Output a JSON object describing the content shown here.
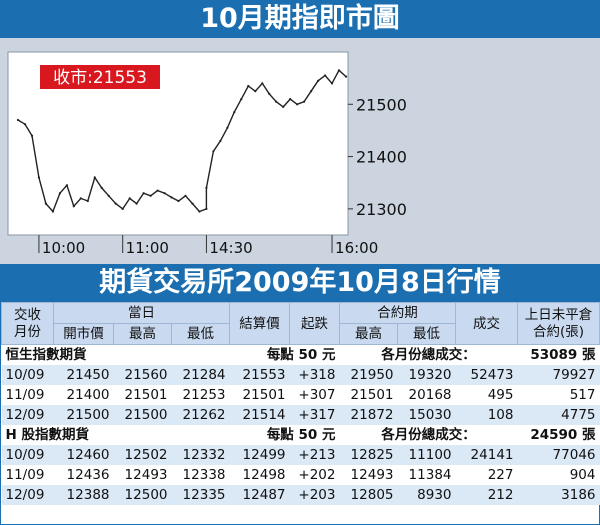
{
  "chart": {
    "title": "10月期指即市圖",
    "close_label": "收市:21553",
    "colors": {
      "background": "#ffffff",
      "price_line": "#222222",
      "badge_bg": "#d9171e",
      "banner": "#1b6fb0"
    }
  },
  "table_title": "期貨交易所2009年10月8日行情",
  "headers": {
    "contract_month_a": "交收",
    "contract_month_b": "月份",
    "today": "當日",
    "open": "開市價",
    "high": "最高",
    "low": "最低",
    "settle": "結算價",
    "change": "起跌",
    "life": "合約期",
    "life_high": "最高",
    "life_low": "最低",
    "volume": "成交",
    "oi_a": "上日未平倉",
    "oi_b": "合約(張)"
  },
  "groups": [
    {
      "name": "恒生指數期貨",
      "per_point": "每點 50 元",
      "total_label": "各月份總成交：",
      "total": "53089 張",
      "rows": [
        {
          "month": "10/09",
          "open": "21450",
          "high": "21560",
          "low": "21284",
          "settle": "21553",
          "change": "+318",
          "life_high": "21950",
          "life_low": "19320",
          "volume": "52473",
          "oi": "79927"
        },
        {
          "month": "11/09",
          "open": "21400",
          "high": "21501",
          "low": "21253",
          "settle": "21501",
          "change": "+307",
          "life_high": "21501",
          "life_low": "20168",
          "volume": "495",
          "oi": "517"
        },
        {
          "month": "12/09",
          "open": "21500",
          "high": "21500",
          "low": "21262",
          "settle": "21514",
          "change": "+317",
          "life_high": "21872",
          "life_low": "15030",
          "volume": "108",
          "oi": "4775"
        }
      ]
    },
    {
      "name": "H 股指數期貨",
      "per_point": "每點 50 元",
      "total_label": "各月份總成交：",
      "total": "24590 張",
      "rows": [
        {
          "month": "10/09",
          "open": "12460",
          "high": "12502",
          "low": "12332",
          "settle": "12499",
          "change": "+213",
          "life_high": "12825",
          "life_low": "11100",
          "volume": "24141",
          "oi": "77046"
        },
        {
          "month": "11/09",
          "open": "12436",
          "high": "12493",
          "low": "12338",
          "settle": "12498",
          "change": "+202",
          "life_high": "12493",
          "life_low": "11384",
          "volume": "227",
          "oi": "904"
        },
        {
          "month": "12/09",
          "open": "12388",
          "high": "12500",
          "low": "12335",
          "settle": "12487",
          "change": "+203",
          "life_high": "12805",
          "life_low": "8930",
          "volume": "212",
          "oi": "3186"
        }
      ]
    }
  ],
  "chart_data": {
    "type": "line",
    "title": "10月期指即市圖",
    "close_label": "收市:21553",
    "x_ticks": [
      "10:00",
      "11:00",
      "14:30",
      "16:00"
    ],
    "y_ticks": [
      21300,
      21400,
      21500
    ],
    "ylim": [
      21250,
      21600
    ],
    "grid": false,
    "x": [
      "09:45",
      "09:50",
      "09:55",
      "10:00",
      "10:05",
      "10:10",
      "10:15",
      "10:20",
      "10:25",
      "10:30",
      "10:35",
      "10:40",
      "10:45",
      "10:50",
      "10:55",
      "11:00",
      "11:05",
      "11:10",
      "11:15",
      "11:20",
      "11:25",
      "11:30",
      "11:35",
      "11:40",
      "11:45",
      "11:50",
      "11:55",
      "12:00",
      "14:30",
      "14:35",
      "14:40",
      "14:45",
      "14:50",
      "14:55",
      "15:00",
      "15:05",
      "15:10",
      "15:15",
      "15:20",
      "15:25",
      "15:30",
      "15:35",
      "15:40",
      "15:45",
      "15:50",
      "15:55",
      "16:00",
      "16:05",
      "16:10"
    ],
    "values": [
      21470,
      21462,
      21440,
      21360,
      21310,
      21295,
      21330,
      21345,
      21305,
      21320,
      21315,
      21360,
      21340,
      21325,
      21310,
      21300,
      21320,
      21310,
      21330,
      21325,
      21335,
      21330,
      21322,
      21315,
      21325,
      21310,
      21295,
      21300,
      21340,
      21410,
      21430,
      21455,
      21485,
      21510,
      21535,
      21525,
      21540,
      21520,
      21505,
      21495,
      21510,
      21500,
      21505,
      21525,
      21545,
      21555,
      21540,
      21565,
      21553
    ]
  }
}
